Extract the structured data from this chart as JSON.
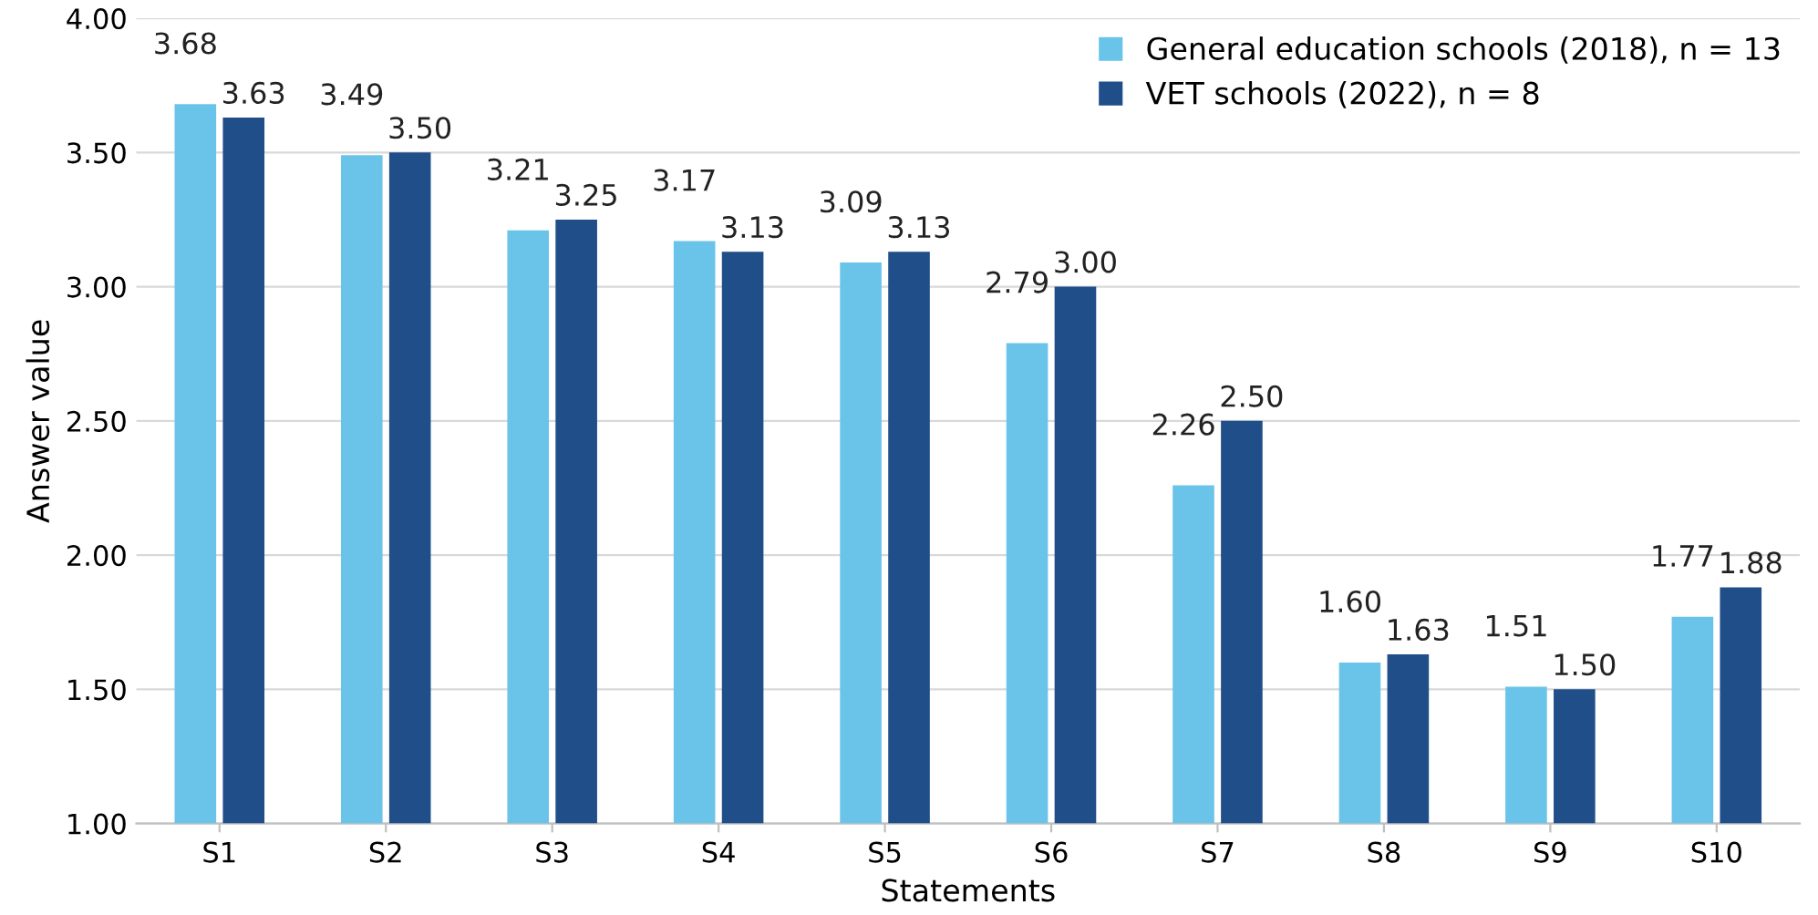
{
  "chart_data": {
    "type": "bar",
    "xlabel": "Statements",
    "ylabel": "Answer value",
    "categories": [
      "S1",
      "S2",
      "S3",
      "S4",
      "S5",
      "S6",
      "S7",
      "S8",
      "S9",
      "S10"
    ],
    "series": [
      {
        "name": "General education schools (2018), n = 13",
        "color": "#6ac4ea",
        "values": [
          3.68,
          3.49,
          3.21,
          3.17,
          3.09,
          2.79,
          2.26,
          1.6,
          1.51,
          1.77
        ],
        "value_labels": [
          "3.68",
          "3.49",
          "3.21",
          "3.17",
          "3.09",
          "2.79",
          "2.26",
          "1.60",
          "1.51",
          "1.77"
        ]
      },
      {
        "name": "VET schools (2022), n = 8",
        "color": "#1f4e89",
        "values": [
          3.63,
          3.5,
          3.25,
          3.13,
          3.13,
          3.0,
          2.5,
          1.63,
          1.5,
          1.88
        ],
        "value_labels": [
          "3.63",
          "3.50",
          "3.25",
          "3.13",
          "3.13",
          "3.00",
          "2.50",
          "1.63",
          "1.50",
          "1.88"
        ]
      }
    ],
    "ylim": [
      1.0,
      4.0
    ],
    "yticks": [
      {
        "value": 1.0,
        "label": "1.00"
      },
      {
        "value": 1.5,
        "label": "1.50"
      },
      {
        "value": 2.0,
        "label": "2.00"
      },
      {
        "value": 2.5,
        "label": "2.50"
      },
      {
        "value": 3.0,
        "label": "3.00"
      },
      {
        "value": 3.5,
        "label": "3.50"
      },
      {
        "value": 4.0,
        "label": "4.00"
      }
    ],
    "grid": "y",
    "legend": "top right"
  }
}
